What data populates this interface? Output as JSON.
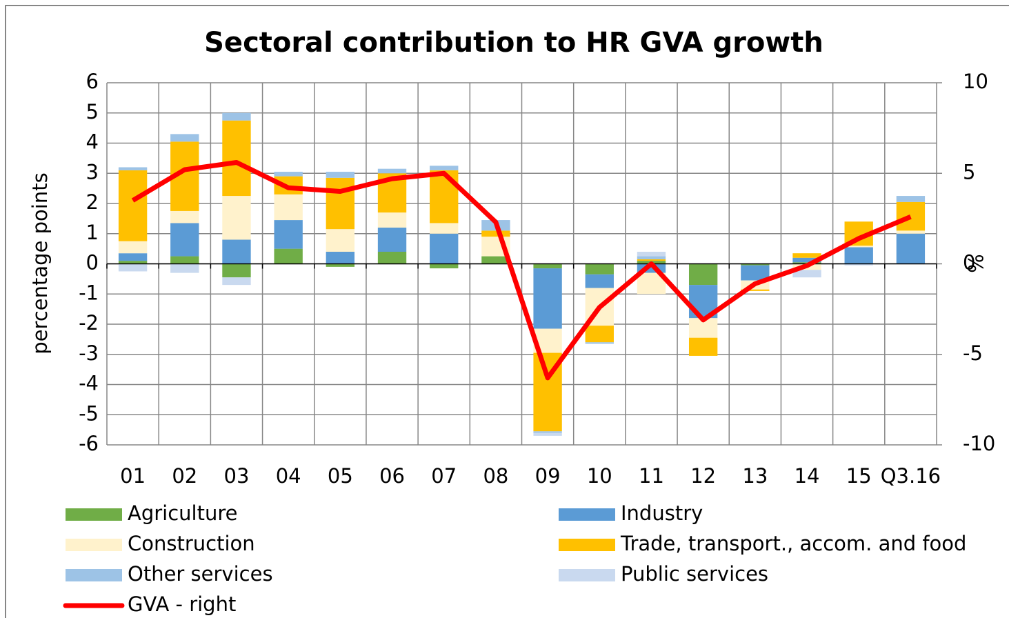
{
  "chart_data": {
    "type": "bar",
    "title": "Sectoral contribution to HR GVA growth",
    "ylabel": "percentage points",
    "y2label": "%",
    "stacked": true,
    "grid": true,
    "categories": [
      "01",
      "02",
      "03",
      "04",
      "05",
      "06",
      "07",
      "08",
      "09",
      "10",
      "11",
      "12",
      "13",
      "14",
      "15",
      "Q3.16"
    ],
    "ylim": [
      -6,
      6
    ],
    "yticks": [
      -6,
      -5,
      -4,
      -3,
      -2,
      -1,
      0,
      1,
      2,
      3,
      4,
      5,
      6
    ],
    "y2lim": [
      -10,
      10
    ],
    "y2ticks": [
      -10,
      -5,
      0,
      5,
      10
    ],
    "series": [
      {
        "name": "Agriculture",
        "color": "#70ad47",
        "values": [
          0.1,
          0.25,
          -0.45,
          0.5,
          -0.1,
          0.4,
          -0.15,
          0.25,
          -0.15,
          -0.35,
          0.1,
          -0.7,
          -0.05,
          0.05,
          0,
          0
        ]
      },
      {
        "name": "Industry",
        "color": "#5b9bd5",
        "values": [
          0.25,
          1.1,
          0.8,
          0.95,
          0.4,
          0.8,
          1.0,
          0,
          -2.0,
          -0.45,
          -0.3,
          -1.1,
          -0.5,
          0.15,
          0.55,
          1.0
        ]
      },
      {
        "name": "Construction",
        "color": "#fff2cc",
        "values": [
          0.4,
          0.4,
          1.45,
          0.85,
          0.75,
          0.5,
          0.35,
          0.65,
          -0.8,
          -1.25,
          -0.7,
          -0.65,
          -0.3,
          -0.2,
          0.05,
          0.1
        ]
      },
      {
        "name": "Trade, transport., accom. and food",
        "color": "#ffc000",
        "values": [
          2.35,
          2.3,
          2.5,
          0.6,
          1.7,
          1.3,
          1.75,
          0.2,
          -2.6,
          -0.55,
          0.05,
          -0.6,
          -0.05,
          0.15,
          0.8,
          0.95
        ]
      },
      {
        "name": "Other services",
        "color": "#9dc3e6",
        "values": [
          0.1,
          0.25,
          0.25,
          0.15,
          0.2,
          0.15,
          0.15,
          0.35,
          -0.05,
          -0.05,
          0.1,
          0,
          0,
          0,
          0,
          0.2
        ]
      },
      {
        "name": "Public services",
        "color": "#c9d9ef",
        "values": [
          -0.25,
          -0.3,
          -0.25,
          0,
          0,
          0,
          0,
          0,
          -0.1,
          0,
          0.15,
          0,
          0,
          -0.25,
          -0.05,
          0
        ]
      },
      {
        "name": "GVA - right",
        "type": "line",
        "axis": "y2",
        "color": "#ff0000",
        "values": [
          3.5,
          5.2,
          5.6,
          4.2,
          4.0,
          4.7,
          5.0,
          2.3,
          -6.3,
          -2.4,
          0,
          -3.1,
          -1.1,
          -0.1,
          1.4,
          2.6
        ]
      }
    ]
  }
}
